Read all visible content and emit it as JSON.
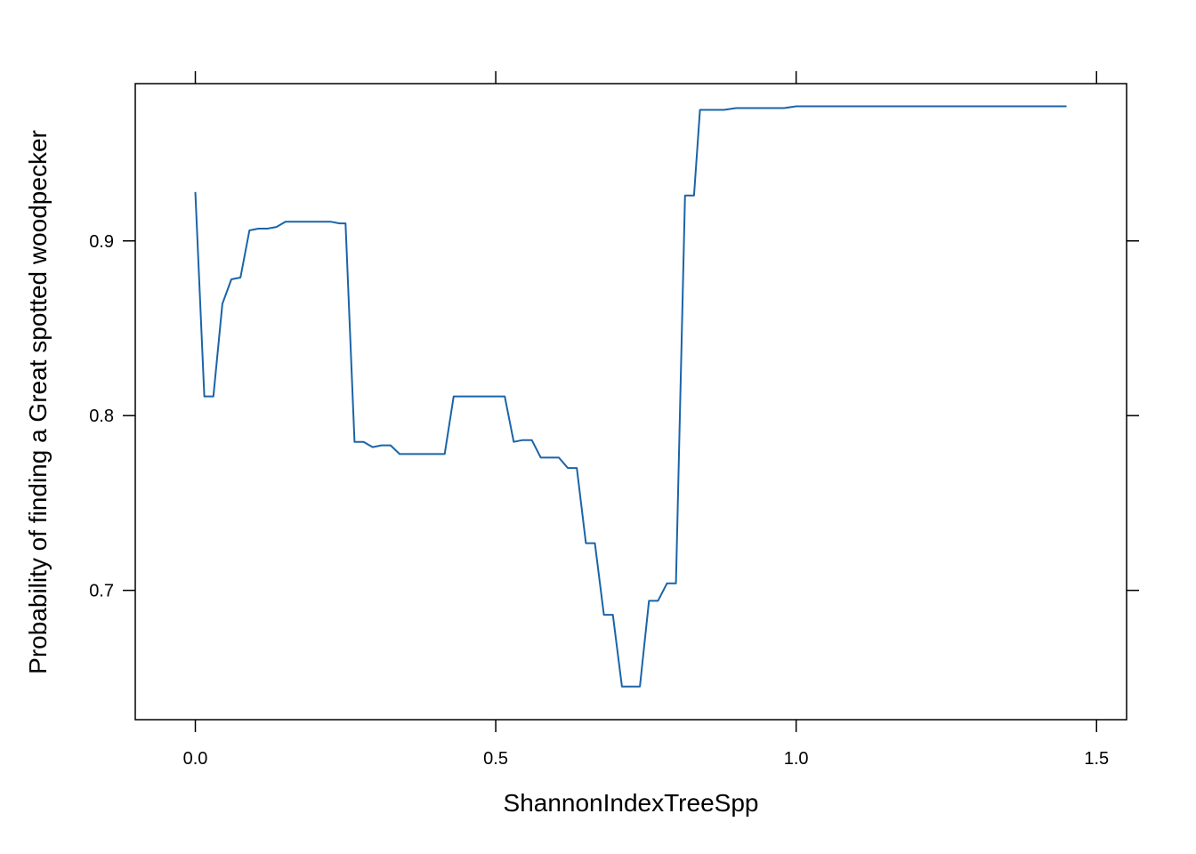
{
  "chart_data": {
    "type": "line",
    "title": "",
    "xlabel": "ShannonIndexTreeSpp",
    "ylabel": "Probability of finding a Great spotted woodpecker",
    "xlim": [
      -0.1,
      1.55
    ],
    "ylim": [
      0.626,
      0.99
    ],
    "x_ticks": [
      0.0,
      0.5,
      1.0,
      1.5
    ],
    "x_tick_labels": [
      "0.0",
      "0.5",
      "1.0",
      "1.5"
    ],
    "y_ticks": [
      0.7,
      0.8,
      0.9
    ],
    "y_tick_labels": [
      "0.7",
      "0.8",
      "0.9"
    ],
    "grid": false,
    "legend": "none",
    "colors": {
      "series": "#1a64a8",
      "axis": "#000000"
    },
    "series": [
      {
        "x": [
          0.0,
          0.015,
          0.03,
          0.045,
          0.06,
          0.075,
          0.09,
          0.105,
          0.12,
          0.135,
          0.15,
          0.18,
          0.21,
          0.225,
          0.24,
          0.25,
          0.265,
          0.28,
          0.295,
          0.31,
          0.325,
          0.34,
          0.36,
          0.38,
          0.415,
          0.43,
          0.46,
          0.49,
          0.515,
          0.53,
          0.545,
          0.56,
          0.575,
          0.59,
          0.605,
          0.62,
          0.635,
          0.65,
          0.665,
          0.68,
          0.695,
          0.71,
          0.74,
          0.755,
          0.77,
          0.785,
          0.8,
          0.815,
          0.83,
          0.84,
          0.855,
          0.88,
          0.9,
          0.93,
          0.96,
          0.98,
          1.0,
          1.05,
          1.1,
          1.13,
          1.2,
          1.3,
          1.4,
          1.45
        ],
        "y": [
          0.928,
          0.811,
          0.811,
          0.864,
          0.878,
          0.879,
          0.906,
          0.907,
          0.907,
          0.908,
          0.911,
          0.911,
          0.911,
          0.911,
          0.91,
          0.91,
          0.785,
          0.785,
          0.782,
          0.783,
          0.783,
          0.778,
          0.778,
          0.778,
          0.778,
          0.811,
          0.811,
          0.811,
          0.811,
          0.785,
          0.786,
          0.786,
          0.776,
          0.776,
          0.776,
          0.77,
          0.77,
          0.727,
          0.727,
          0.686,
          0.686,
          0.645,
          0.645,
          0.694,
          0.694,
          0.704,
          0.704,
          0.926,
          0.926,
          0.975,
          0.975,
          0.975,
          0.976,
          0.976,
          0.976,
          0.976,
          0.977,
          0.977,
          0.977,
          0.977,
          0.977,
          0.977,
          0.977,
          0.977
        ]
      }
    ]
  }
}
